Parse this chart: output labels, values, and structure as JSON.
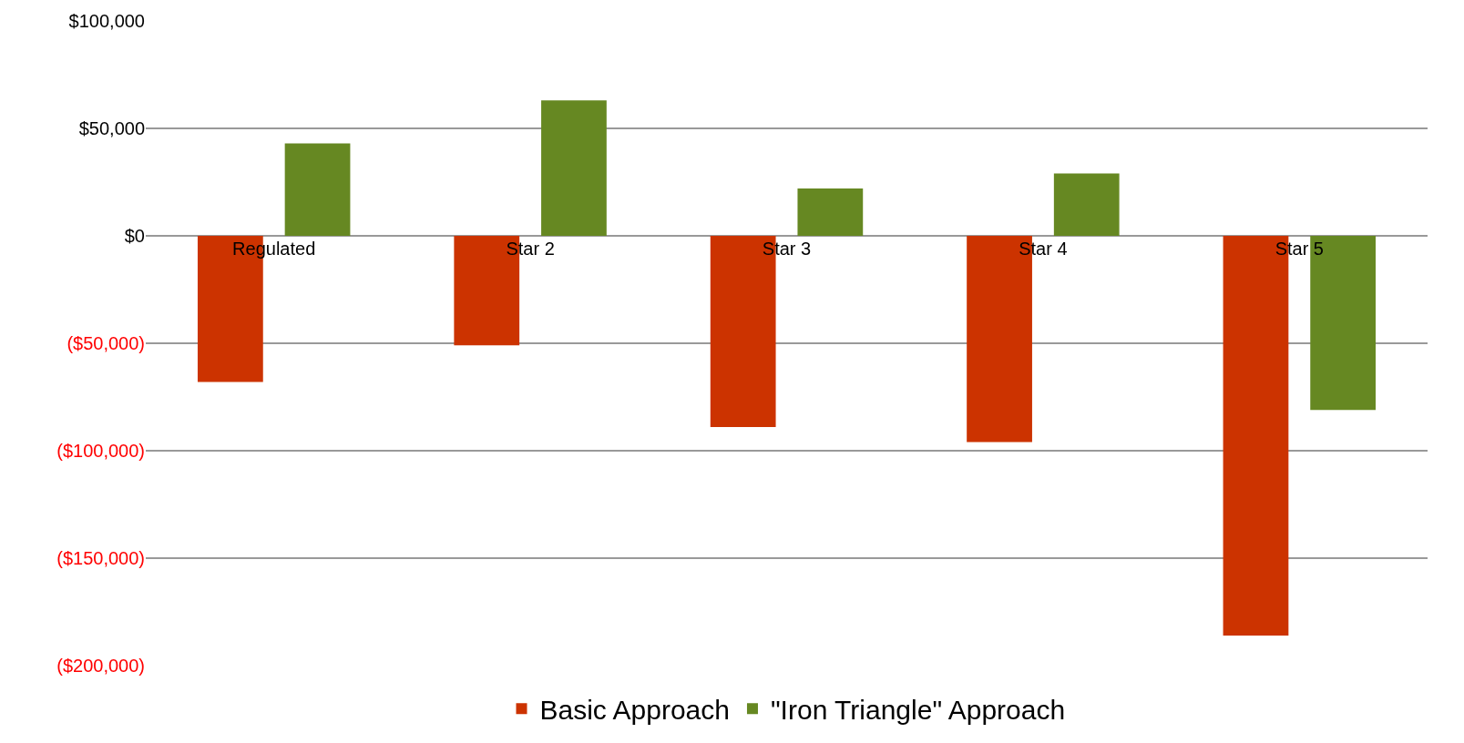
{
  "chart_data": {
    "type": "bar",
    "categories": [
      "Regulated",
      "Star 2",
      "Star 3",
      "Star 4",
      "Star 5"
    ],
    "series": [
      {
        "name": "Basic Approach",
        "color": "#cc3300",
        "values": [
          -68000,
          -51000,
          -89000,
          -96000,
          -186000
        ]
      },
      {
        "name": "\"Iron Triangle\" Approach",
        "color": "#668822",
        "values": [
          43000,
          63000,
          22000,
          29000,
          -81000
        ]
      }
    ],
    "ylim": [
      -200000,
      100000
    ],
    "yticks": [
      {
        "value": -200000,
        "label": "($200,000)"
      },
      {
        "value": -150000,
        "label": "($150,000)"
      },
      {
        "value": -100000,
        "label": "($100,000)"
      },
      {
        "value": -50000,
        "label": "($50,000)"
      },
      {
        "value": 0,
        "label": "$0"
      },
      {
        "value": 50000,
        "label": "$50,000"
      },
      {
        "value": 100000,
        "label": "$100,000"
      }
    ],
    "grid": "y",
    "legend": "bottom"
  }
}
